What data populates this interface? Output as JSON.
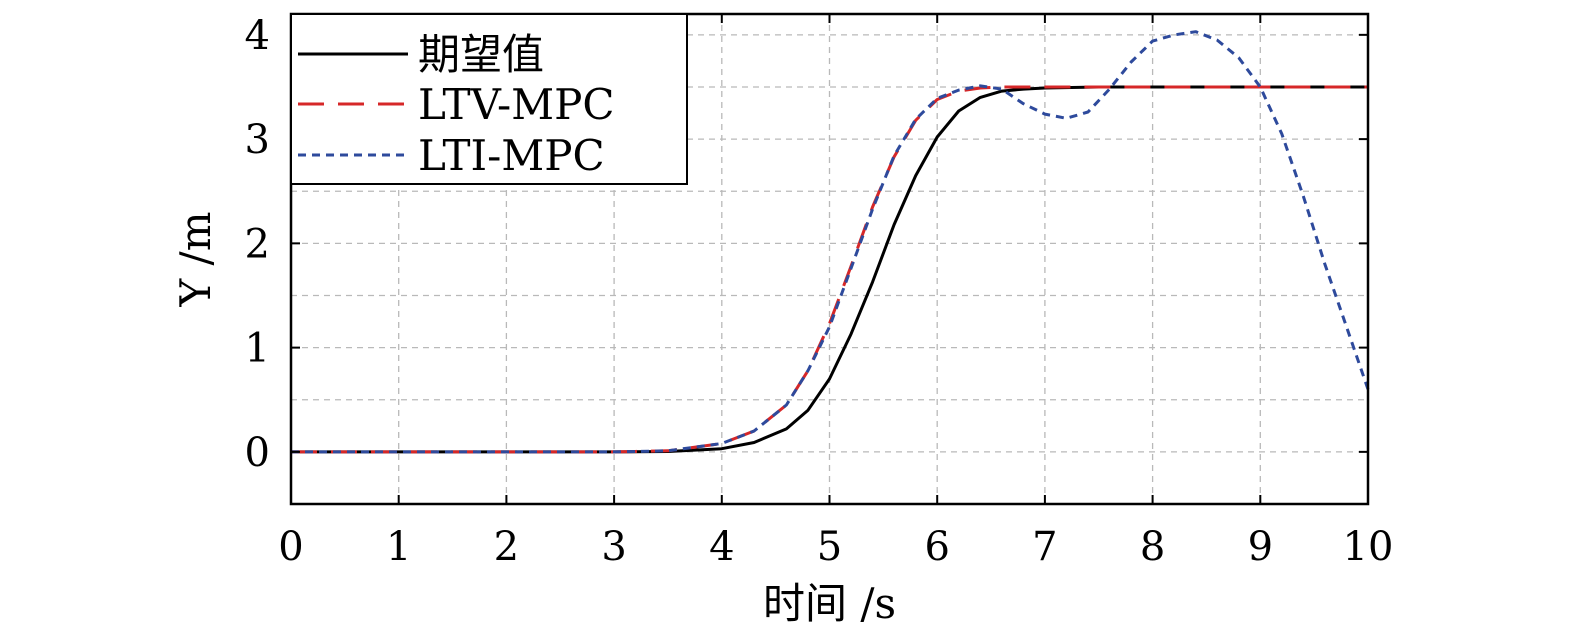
{
  "chart_data": {
    "type": "line",
    "xlabel": "时间 /s",
    "ylabel": "Y /m",
    "xlim": [
      0,
      10
    ],
    "ylim": [
      -0.5,
      4.2
    ],
    "xticks": [
      "0",
      "1",
      "2",
      "3",
      "4",
      "5",
      "6",
      "7",
      "8",
      "9",
      "10"
    ],
    "yticks": [
      "0",
      "1",
      "2",
      "3",
      "4"
    ],
    "grid": true,
    "legend_position": "top-left",
    "series": [
      {
        "name": "期望值",
        "color": "#000000",
        "style": "solid",
        "x": [
          0,
          3,
          3.5,
          4,
          4.3,
          4.6,
          4.8,
          5.0,
          5.2,
          5.4,
          5.6,
          5.8,
          6.0,
          6.2,
          6.4,
          6.6,
          6.8,
          7.0,
          7.5,
          8,
          9,
          10
        ],
        "y": [
          0,
          0,
          0.004,
          0.03,
          0.09,
          0.22,
          0.4,
          0.7,
          1.13,
          1.63,
          2.18,
          2.65,
          3.02,
          3.27,
          3.4,
          3.46,
          3.48,
          3.49,
          3.5,
          3.5,
          3.5,
          3.5
        ]
      },
      {
        "name": "LTV-MPC",
        "color": "#d62728",
        "style": "dash",
        "x": [
          0,
          3,
          3.5,
          4,
          4.3,
          4.6,
          4.8,
          5.0,
          5.2,
          5.4,
          5.6,
          5.8,
          6.0,
          6.2,
          6.4,
          6.6,
          6.8,
          7.0,
          7.5,
          8,
          9,
          10
        ],
        "y": [
          0,
          0,
          0.01,
          0.08,
          0.2,
          0.45,
          0.78,
          1.23,
          1.78,
          2.35,
          2.83,
          3.18,
          3.38,
          3.46,
          3.49,
          3.5,
          3.5,
          3.5,
          3.5,
          3.5,
          3.5,
          3.5
        ]
      },
      {
        "name": "LTI-MPC",
        "color": "#2e4a9c",
        "style": "dot",
        "x": [
          0,
          3,
          3.5,
          4,
          4.3,
          4.6,
          4.8,
          5.0,
          5.2,
          5.4,
          5.6,
          5.8,
          6.0,
          6.2,
          6.4,
          6.6,
          6.8,
          7.0,
          7.2,
          7.4,
          7.6,
          7.8,
          8.0,
          8.2,
          8.4,
          8.6,
          8.8,
          9.0,
          9.2,
          9.4,
          9.6,
          9.8,
          10.0
        ],
        "y": [
          0,
          0,
          0.01,
          0.08,
          0.2,
          0.45,
          0.78,
          1.2,
          1.76,
          2.33,
          2.84,
          3.19,
          3.39,
          3.47,
          3.51,
          3.48,
          3.34,
          3.24,
          3.2,
          3.26,
          3.48,
          3.74,
          3.94,
          4.0,
          4.03,
          3.95,
          3.78,
          3.5,
          3.05,
          2.45,
          1.8,
          1.2,
          0.6
        ]
      }
    ]
  }
}
